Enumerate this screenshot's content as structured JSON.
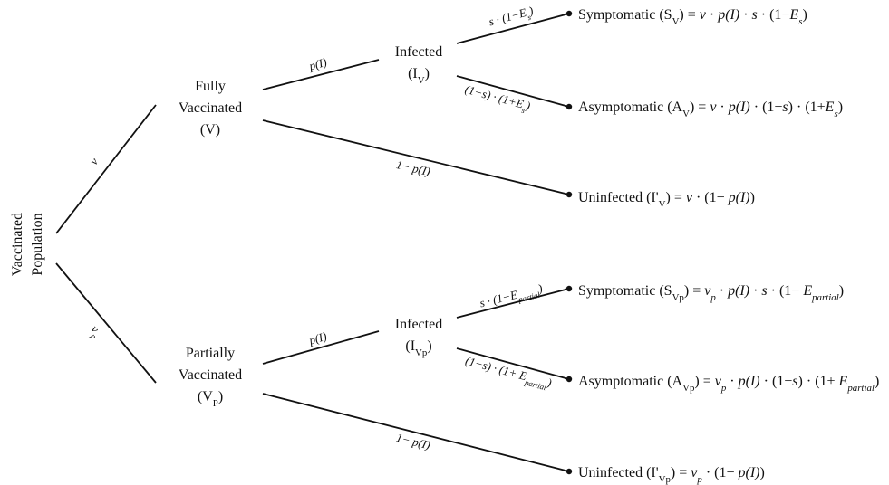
{
  "root": [
    "Vaccinated",
    "Population"
  ],
  "nodes": [
    {
      "lines": [
        [
          "Fully"
        ],
        [
          "Vaccinated"
        ],
        [
          "(V)"
        ]
      ]
    },
    {
      "lines": [
        [
          "Partially"
        ],
        [
          "Vaccinated"
        ],
        [
          "(V",
          "P",
          ")"
        ]
      ]
    },
    {
      "lines": [
        [
          "Infected"
        ],
        [
          "(I",
          "V",
          ")"
        ]
      ]
    },
    {
      "lines": [
        [
          "Infected"
        ],
        [
          "(I",
          "Vp",
          ")"
        ]
      ]
    }
  ],
  "edges": [
    [
      "v"
    ],
    [
      "v",
      "p"
    ],
    [
      "p(I)"
    ],
    [
      "1− p(I)"
    ],
    [
      "s · (1−E",
      "s",
      ")"
    ],
    [
      "(1−s) · (1+E",
      "s",
      ")"
    ],
    [
      "p(I)"
    ],
    [
      "1− p(I)"
    ],
    [
      "s · (1−E",
      "partial",
      ")"
    ],
    [
      "(1−s) · (1+ E",
      "partial",
      ")"
    ]
  ],
  "leaves": [
    [
      "Symptomatic (S",
      "V",
      ") = ",
      "v",
      " · ",
      "p(I)",
      " · ",
      "s",
      " · (1−",
      "E",
      "s",
      ")"
    ],
    [
      "Asymptomatic (A",
      "V",
      ") = ",
      "v",
      " · ",
      "p(I)",
      " · (1−",
      "s",
      ") · (1+",
      "E",
      "s",
      ")"
    ],
    [
      "Uninfected (I'",
      "V",
      ") = ",
      "v",
      " · (1− ",
      "p(I)",
      ")"
    ],
    [
      "Symptomatic (S",
      "Vp",
      ") = ",
      "v",
      "p",
      " · ",
      "p(I)",
      " · ",
      "s",
      " · (1− ",
      "E",
      "partial",
      ")"
    ],
    [
      "Asymptomatic (A",
      "Vp",
      ") = ",
      "v",
      "p",
      " · ",
      "p(I)",
      " · (1−",
      "s",
      ") · (1+ ",
      "E",
      "partial",
      ")"
    ],
    [
      "Uninfected (I'",
      "Vp",
      ") = ",
      "v",
      "p",
      " · (1− ",
      "p(I)",
      ")"
    ]
  ]
}
